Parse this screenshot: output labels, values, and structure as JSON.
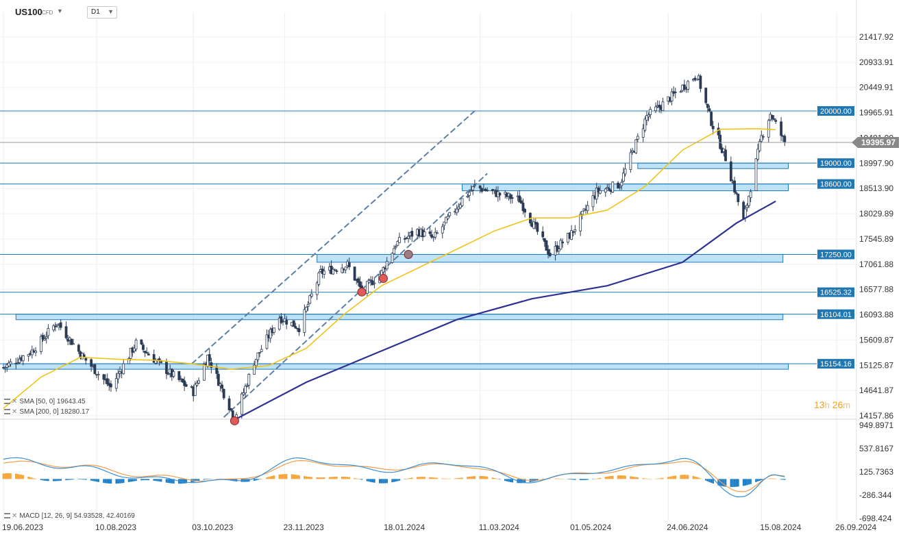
{
  "header": {
    "symbol": "US100",
    "symbol_type": "CFD",
    "timeframe": "D1"
  },
  "legend": {
    "sma50": "SMA [50, 0]  19643.45",
    "sma200": "SMA [200, 0]  18280.17",
    "macd": "MACD [12, 26, 9]  54.93528,   42.40169"
  },
  "timer": {
    "hours": "13",
    "h": "h",
    "minutes": "26",
    "m": "m"
  },
  "colors": {
    "bull": "#ffffff",
    "bear": "#2b3a55",
    "sma50": "#f0c419",
    "sma200": "#2e3192",
    "level_line": "#1f78b4",
    "zone_fill": "#a8d8f5",
    "zone_border": "#1f78b4",
    "label_bg": "#1f78b4",
    "current_price_bg": "#888888",
    "macd_line": "#3b8fd1",
    "signal_line": "#f39c4a",
    "hist_pos": "#f5a53a",
    "hist_neg": "#1f80c8",
    "markers": "#e05a5a"
  },
  "chart_data": [
    {
      "type": "candlestick",
      "title": "US100 CFD D1",
      "ylim": [
        14000,
        21500
      ],
      "y_ticks": [
        "21417.92",
        "20933.91",
        "20449.91",
        "19965.91",
        "19481.90",
        "18997.90",
        "18513.90",
        "18029.89",
        "17545.89",
        "17061.88",
        "16577.88",
        "16093.88",
        "15609.87",
        "15125.87",
        "14641.87",
        "14157.86"
      ],
      "x_ticks": [
        "19.06.2023",
        "10.08.2023",
        "03.10.2023",
        "23.11.2023",
        "18.01.2024",
        "11.03.2024",
        "01.05.2024",
        "24.06.2024",
        "15.08.2024",
        "26.09.2024"
      ],
      "current_price": "19395.97",
      "levels": [
        "20000.00",
        "19000.00",
        "18600.00",
        "17250.00",
        "16525.32",
        "16104.01",
        "15154.16"
      ],
      "support_resistance_zones": [
        {
          "from": "2024-06-07",
          "to": "2024-08-30",
          "low": 18900,
          "high": 19000
        },
        {
          "from": "2024-03-01",
          "to": "2024-08-30",
          "low": 18470,
          "high": 18600
        },
        {
          "from": "2023-12-11",
          "to": "2024-08-27",
          "low": 17100,
          "high": 17250
        },
        {
          "from": "2023-06-26",
          "to": "2024-08-27",
          "low": 16030,
          "high": 16104
        },
        {
          "from": "2023-06-19",
          "to": "2024-08-30",
          "low": 15100,
          "high": 15154
        }
      ],
      "trend_channel": [
        {
          "from": [
            "2023-10-02",
            15150
          ],
          "to": [
            "2024-03-08",
            20000
          ]
        },
        {
          "from": [
            "2023-10-20",
            14130
          ],
          "to": [
            "2024-03-15",
            18800
          ]
        }
      ],
      "markers": [
        {
          "date": "2023-10-26",
          "price": 14060
        },
        {
          "date": "2024-01-05",
          "price": 16530
        },
        {
          "date": "2024-01-17",
          "price": 16790
        },
        {
          "date": "2024-01-31",
          "price": 17250
        }
      ],
      "series": [
        {
          "name": "SMA [50, 0]",
          "x": [
            "2023-06-19",
            "2023-07-10",
            "2023-08-01",
            "2023-08-22",
            "2023-09-12",
            "2023-10-03",
            "2023-10-24",
            "2023-11-14",
            "2023-12-05",
            "2023-12-26",
            "2024-01-16",
            "2024-02-06",
            "2024-02-27",
            "2024-03-19",
            "2024-04-09",
            "2024-04-30",
            "2024-05-21",
            "2024-06-11",
            "2024-07-02",
            "2024-07-23",
            "2024-08-13",
            "2024-08-23"
          ],
          "values": [
            14300,
            14900,
            15280,
            15240,
            15220,
            15150,
            15050,
            15120,
            15450,
            16100,
            16650,
            17000,
            17350,
            17700,
            17950,
            17950,
            18100,
            18550,
            19250,
            19650,
            19660,
            19640
          ]
        },
        {
          "name": "SMA [200, 0]",
          "x": [
            "2023-10-26",
            "2023-12-05",
            "2024-01-16",
            "2024-02-27",
            "2024-04-09",
            "2024-05-21",
            "2024-07-02",
            "2024-08-01",
            "2024-08-23"
          ],
          "values": [
            14080,
            14800,
            15400,
            16000,
            16400,
            16650,
            17100,
            17850,
            18270
          ]
        }
      ]
    },
    {
      "type": "macd",
      "ylim": [
        -700,
        1000
      ],
      "y_ticks": [
        "949.8971",
        "537.8167",
        "125.7363",
        "-286.344",
        "-698.424"
      ],
      "series": [
        {
          "name": "MACD",
          "x": [
            "2023-06-19",
            "2023-07-31",
            "2023-09-11",
            "2023-10-23",
            "2023-12-04",
            "2024-01-15",
            "2024-02-26",
            "2024-04-08",
            "2024-05-20",
            "2024-07-01",
            "2024-08-05",
            "2024-08-23"
          ],
          "values": [
            350,
            200,
            0,
            -50,
            350,
            150,
            280,
            -30,
            150,
            350,
            -300,
            54.94
          ]
        },
        {
          "name": "Signal",
          "x": [
            "2023-06-19",
            "2023-07-31",
            "2023-09-11",
            "2023-10-23",
            "2023-12-04",
            "2024-01-15",
            "2024-02-26",
            "2024-04-08",
            "2024-05-20",
            "2024-07-01",
            "2024-08-05",
            "2024-08-23"
          ],
          "values": [
            300,
            230,
            40,
            -30,
            300,
            180,
            250,
            0,
            130,
            320,
            -200,
            42.4
          ]
        }
      ]
    }
  ]
}
